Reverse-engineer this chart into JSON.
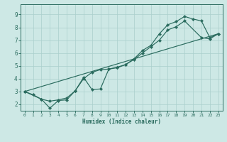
{
  "xlabel": "Humidex (Indice chaleur)",
  "bg_color": "#cde8e5",
  "grid_color": "#aacfcc",
  "line_color": "#2a6b5e",
  "xlim": [
    -0.5,
    23.5
  ],
  "ylim": [
    1.5,
    9.8
  ],
  "xticks": [
    0,
    1,
    2,
    3,
    4,
    5,
    6,
    7,
    8,
    9,
    10,
    11,
    12,
    13,
    14,
    15,
    16,
    17,
    18,
    19,
    20,
    21,
    22,
    23
  ],
  "yticks": [
    2,
    3,
    4,
    5,
    6,
    7,
    8,
    9
  ],
  "line1_x": [
    0,
    1,
    2,
    3,
    4,
    5,
    6,
    7,
    8,
    9,
    10,
    11,
    12,
    13,
    14,
    15,
    16,
    17,
    18,
    19,
    20,
    21,
    22,
    23
  ],
  "line1_y": [
    3.0,
    2.75,
    2.4,
    1.7,
    2.3,
    2.35,
    3.05,
    4.1,
    3.15,
    3.2,
    4.75,
    4.85,
    5.1,
    5.55,
    6.2,
    6.6,
    7.5,
    8.2,
    8.45,
    8.85,
    8.65,
    8.5,
    7.2,
    7.5
  ],
  "line2_x": [
    0,
    2,
    3,
    4,
    5,
    6,
    7,
    8,
    9,
    10,
    11,
    12,
    13,
    14,
    15,
    16,
    17,
    18,
    19,
    21,
    22,
    23
  ],
  "line2_y": [
    3.0,
    2.4,
    2.25,
    2.35,
    2.5,
    3.05,
    4.0,
    4.5,
    4.7,
    4.75,
    4.9,
    5.1,
    5.5,
    6.0,
    6.5,
    7.0,
    7.8,
    8.05,
    8.5,
    7.2,
    7.1,
    7.5
  ],
  "line3_x": [
    0,
    23
  ],
  "line3_y": [
    3.0,
    7.5
  ]
}
